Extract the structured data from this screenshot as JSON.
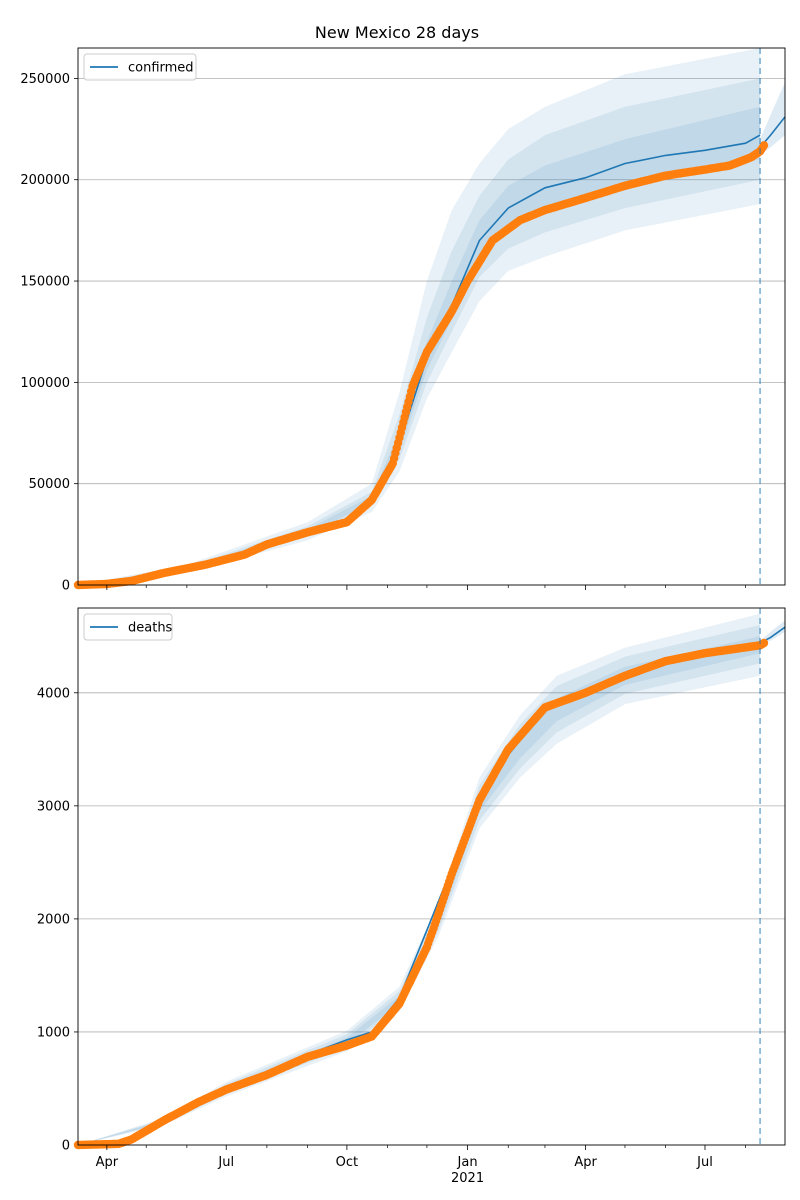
{
  "chart_data": [
    {
      "type": "line",
      "title": "New Mexico 28 days",
      "xlabel": "",
      "ylabel": "",
      "ylim": [
        0,
        265000
      ],
      "xlim": [
        "2020-03-10",
        "2021-08-31"
      ],
      "grid": "horizontal",
      "legend": {
        "position": "top-left",
        "entries": [
          "confirmed"
        ]
      },
      "vline": {
        "x": "2021-08-12",
        "style": "dashed",
        "color": "#1f77b4"
      },
      "y_ticks": [
        0,
        50000,
        100000,
        150000,
        200000,
        250000
      ],
      "y_tick_labels": [
        "0",
        "50000",
        "100000",
        "150000",
        "200000",
        "250000"
      ],
      "x_tick_labels": [],
      "series": [
        {
          "name": "confirmed",
          "kind": "model",
          "color": "#1f77b4",
          "x": [
            "2020-03-10",
            "2020-04-20",
            "2020-06-01",
            "2020-07-15",
            "2020-09-01",
            "2020-10-01",
            "2020-10-20",
            "2020-11-10",
            "2020-12-01",
            "2020-12-20",
            "2021-01-10",
            "2021-02-01",
            "2021-03-01",
            "2021-04-01",
            "2021-05-01",
            "2021-06-01",
            "2021-07-01",
            "2021-08-01",
            "2021-08-12"
          ],
          "y": [
            0,
            2000,
            8000,
            15000,
            26000,
            32000,
            42000,
            70000,
            112000,
            138000,
            170000,
            186000,
            196000,
            201000,
            208000,
            212000,
            214500,
            218000,
            222000
          ]
        },
        {
          "kind": "forecast",
          "color": "#1f77b4",
          "x": [
            "2021-08-12",
            "2021-08-20",
            "2021-08-31"
          ],
          "y": [
            216000,
            222000,
            231000
          ]
        },
        {
          "kind": "observed",
          "color": "#ff7f0e",
          "x": [
            "2020-03-10",
            "2020-04-01",
            "2020-04-20",
            "2020-05-15",
            "2020-06-15",
            "2020-07-15",
            "2020-08-01",
            "2020-09-01",
            "2020-10-01",
            "2020-10-20",
            "2020-11-05",
            "2020-11-20",
            "2020-12-01",
            "2020-12-20",
            "2021-01-01",
            "2021-01-20",
            "2021-02-10",
            "2021-03-01",
            "2021-04-01",
            "2021-05-01",
            "2021-06-01",
            "2021-07-01",
            "2021-07-20",
            "2021-08-05",
            "2021-08-12",
            "2021-08-15"
          ],
          "y": [
            0,
            500,
            2000,
            6000,
            10000,
            15000,
            20000,
            26000,
            31000,
            42000,
            60000,
            98000,
            115000,
            135000,
            150000,
            170000,
            180000,
            185000,
            191000,
            197000,
            202000,
            205000,
            207000,
            211000,
            214000,
            217000
          ]
        }
      ],
      "bands": [
        {
          "x": [
            "2020-03-10",
            "2020-06-01",
            "2020-09-01",
            "2020-10-20",
            "2020-11-10",
            "2020-12-01",
            "2020-12-20",
            "2021-01-10",
            "2021-02-01",
            "2021-03-01",
            "2021-05-01",
            "2021-08-12"
          ],
          "lower": [
            0,
            6000,
            22000,
            36000,
            56000,
            92000,
            115000,
            140000,
            155000,
            162000,
            175000,
            188000
          ],
          "upper": [
            0,
            10000,
            31000,
            50000,
            95000,
            150000,
            185000,
            208000,
            225000,
            236000,
            252000,
            265000
          ]
        },
        {
          "x": [
            "2020-03-10",
            "2020-06-01",
            "2020-09-01",
            "2020-10-20",
            "2020-11-10",
            "2020-12-01",
            "2020-12-20",
            "2021-01-10",
            "2021-02-01",
            "2021-03-01",
            "2021-05-01",
            "2021-08-12"
          ],
          "lower": [
            0,
            7000,
            24000,
            39000,
            62000,
            100000,
            125000,
            152000,
            166000,
            174000,
            186000,
            200000
          ],
          "upper": [
            0,
            9000,
            29000,
            46000,
            84000,
            132000,
            165000,
            192000,
            210000,
            222000,
            236000,
            250000
          ]
        },
        {
          "x": [
            "2020-03-10",
            "2020-06-01",
            "2020-09-01",
            "2020-10-20",
            "2020-11-10",
            "2020-12-01",
            "2020-12-20",
            "2021-01-10",
            "2021-02-01",
            "2021-03-01",
            "2021-05-01",
            "2021-08-12"
          ],
          "lower": [
            0,
            7500,
            25000,
            40500,
            66000,
            106000,
            131000,
            160000,
            176000,
            185000,
            197000,
            210000
          ],
          "upper": [
            0,
            8500,
            27500,
            44000,
            76000,
            120000,
            150000,
            180000,
            197000,
            207000,
            220000,
            236000
          ]
        }
      ],
      "forecast_band": {
        "x": [
          "2021-08-12",
          "2021-08-20",
          "2021-08-31"
        ],
        "lower": [
          212000,
          216000,
          222000
        ],
        "upper": [
          220000,
          232000,
          248000
        ]
      }
    },
    {
      "type": "line",
      "title": "",
      "xlabel": "",
      "ylabel": "",
      "ylim": [
        0,
        4750
      ],
      "xlim": [
        "2020-03-10",
        "2021-08-31"
      ],
      "grid": "horizontal",
      "legend": {
        "position": "top-left",
        "entries": [
          "deaths"
        ]
      },
      "vline": {
        "x": "2021-08-12",
        "style": "dashed",
        "color": "#1f77b4"
      },
      "y_ticks": [
        0,
        1000,
        2000,
        3000,
        4000
      ],
      "y_tick_labels": [
        "0",
        "1000",
        "2000",
        "3000",
        "4000"
      ],
      "x_ticks": [
        "2020-04-01",
        "2020-07-01",
        "2020-10-01",
        "2021-01-01",
        "2021-04-01",
        "2021-07-01"
      ],
      "x_tick_labels": [
        "Apr",
        "Jul",
        "Oct",
        "Jan",
        "Apr",
        "Jul"
      ],
      "x_sub_label": {
        "x": "2021-01-01",
        "text": "2021"
      },
      "x_minor_ticks": [
        "2020-05-01",
        "2020-06-01",
        "2020-08-01",
        "2020-09-01",
        "2020-11-01",
        "2020-12-01",
        "2021-02-01",
        "2021-03-01",
        "2021-05-01",
        "2021-06-01",
        "2021-08-01",
        "2021-09-01"
      ],
      "series": [
        {
          "name": "deaths",
          "kind": "model",
          "color": "#1f77b4",
          "x": [
            "2020-03-10",
            "2020-04-15",
            "2020-05-15",
            "2020-07-01",
            "2020-09-01",
            "2020-10-01",
            "2020-10-20",
            "2020-11-10",
            "2020-12-01",
            "2020-12-20",
            "2021-01-10",
            "2021-02-01",
            "2021-03-01",
            "2021-04-01",
            "2021-05-01",
            "2021-06-01",
            "2021-07-01",
            "2021-08-12"
          ],
          "y": [
            0,
            20,
            200,
            500,
            800,
            930,
            1000,
            1300,
            1900,
            2450,
            3050,
            3450,
            3850,
            4000,
            4150,
            4250,
            4330,
            4430
          ]
        },
        {
          "kind": "forecast",
          "color": "#1f77b4",
          "x": [
            "2021-08-12",
            "2021-08-20",
            "2021-08-31"
          ],
          "y": [
            4440,
            4490,
            4580
          ]
        },
        {
          "kind": "observed",
          "color": "#ff7f0e",
          "x": [
            "2020-03-10",
            "2020-04-10",
            "2020-04-20",
            "2020-05-15",
            "2020-06-10",
            "2020-07-01",
            "2020-08-01",
            "2020-09-01",
            "2020-10-01",
            "2020-10-20",
            "2020-11-10",
            "2020-12-01",
            "2020-12-10",
            "2020-12-20",
            "2021-01-10",
            "2021-02-01",
            "2021-03-01",
            "2021-04-01",
            "2021-05-01",
            "2021-06-01",
            "2021-07-01",
            "2021-08-12",
            "2021-08-15"
          ],
          "y": [
            0,
            10,
            50,
            220,
            380,
            490,
            620,
            780,
            880,
            960,
            1250,
            1750,
            2050,
            2400,
            3050,
            3500,
            3870,
            4000,
            4150,
            4280,
            4350,
            4420,
            4440
          ]
        }
      ],
      "bands": [
        {
          "x": [
            "2020-03-10",
            "2020-05-15",
            "2020-07-01",
            "2020-10-01",
            "2020-11-10",
            "2020-12-10",
            "2021-01-10",
            "2021-02-10",
            "2021-03-10",
            "2021-05-01",
            "2021-08-12"
          ],
          "lower": [
            0,
            180,
            430,
            830,
            1180,
            1850,
            2800,
            3250,
            3550,
            3900,
            4150
          ],
          "upper": [
            0,
            240,
            560,
            1010,
            1400,
            2150,
            3250,
            3800,
            4150,
            4400,
            4700
          ]
        },
        {
          "x": [
            "2020-03-10",
            "2020-05-15",
            "2020-07-01",
            "2020-10-01",
            "2020-11-10",
            "2020-12-10",
            "2021-01-10",
            "2021-02-10",
            "2021-03-10",
            "2021-05-01",
            "2021-08-12"
          ],
          "lower": [
            0,
            190,
            450,
            860,
            1220,
            1900,
            2870,
            3330,
            3650,
            3990,
            4260
          ],
          "upper": [
            0,
            230,
            540,
            980,
            1360,
            2100,
            3180,
            3720,
            4060,
            4320,
            4600
          ]
        },
        {
          "x": [
            "2020-03-10",
            "2020-05-15",
            "2020-07-01",
            "2020-10-01",
            "2020-11-10",
            "2020-12-10",
            "2021-01-10",
            "2021-02-10",
            "2021-03-10",
            "2021-05-01",
            "2021-08-12"
          ],
          "lower": [
            0,
            200,
            470,
            890,
            1250,
            1950,
            2950,
            3420,
            3750,
            4070,
            4350
          ],
          "upper": [
            0,
            220,
            520,
            950,
            1320,
            2050,
            3100,
            3620,
            3950,
            4230,
            4500
          ]
        }
      ],
      "forecast_band": {
        "x": [
          "2021-08-12",
          "2021-08-20",
          "2021-08-31"
        ],
        "lower": [
          4430,
          4460,
          4540
        ],
        "upper": [
          4460,
          4540,
          4640
        ]
      }
    }
  ]
}
